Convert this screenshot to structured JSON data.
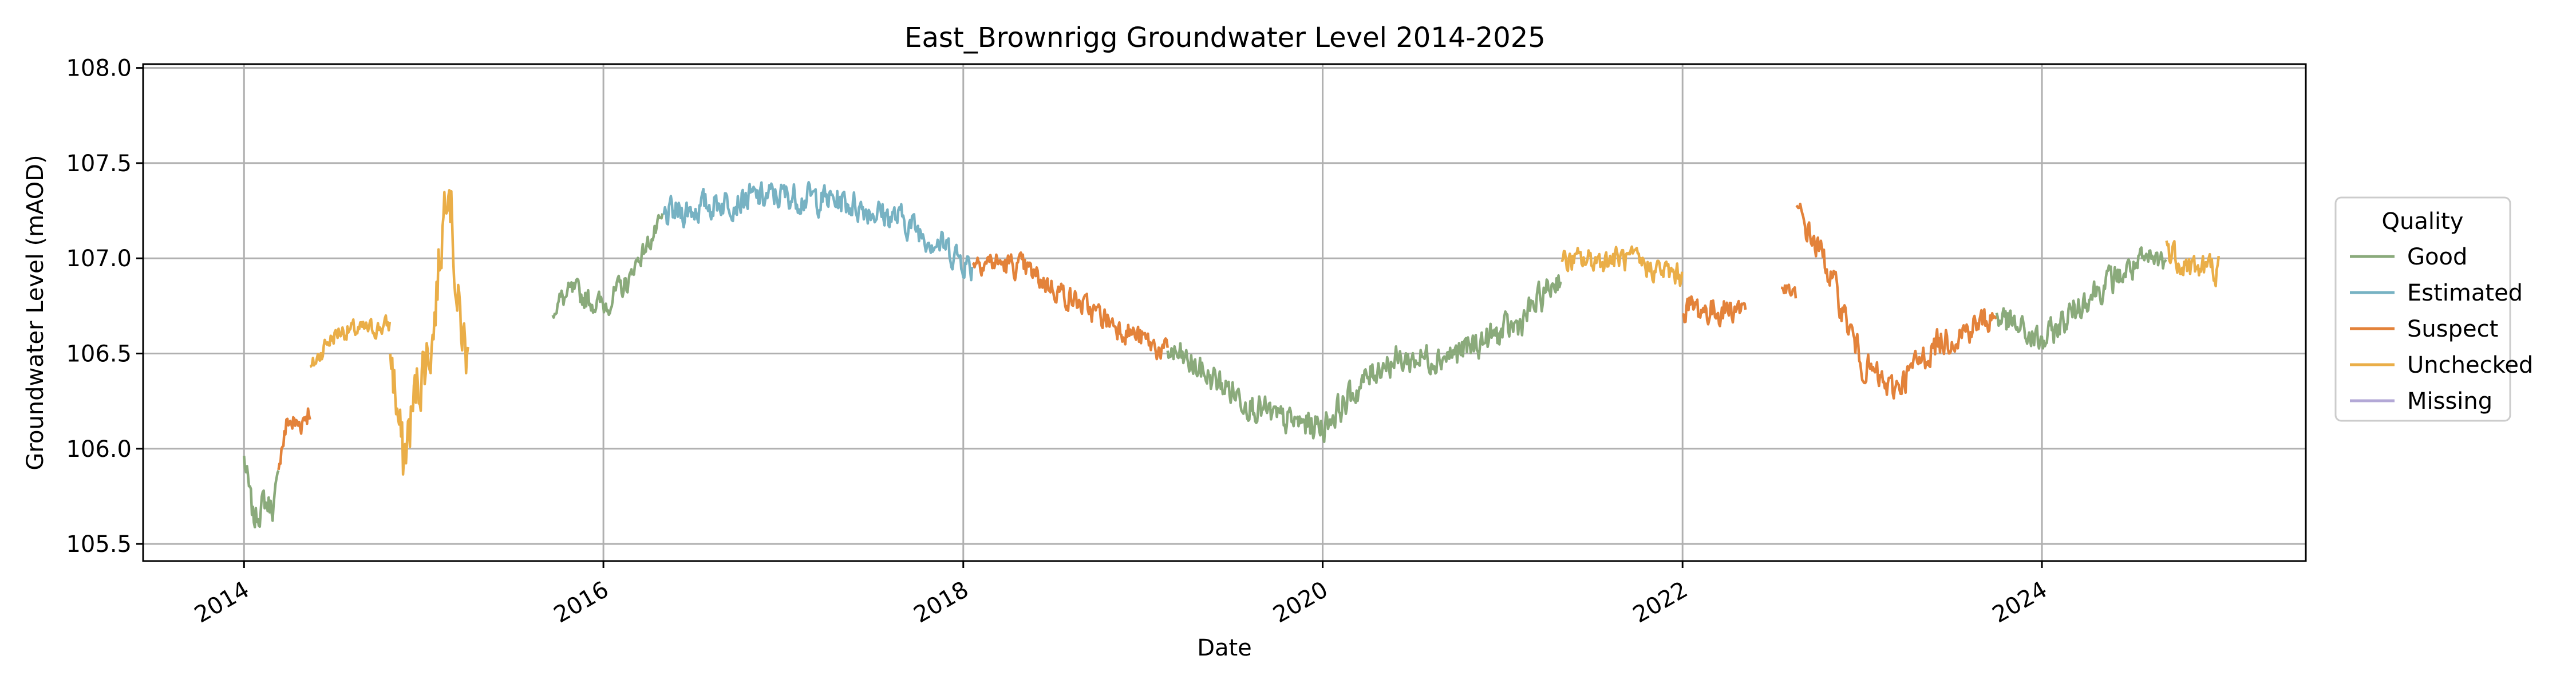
{
  "chart_data": {
    "type": "line",
    "title": "East_Brownrigg Groundwater Level 2014-2025",
    "xlabel": "Date",
    "ylabel": "Groundwater Level (mAOD)",
    "x_ticks": [
      "2014",
      "2016",
      "2018",
      "2020",
      "2022",
      "2024"
    ],
    "y_ticks": [
      "105.5",
      "106.0",
      "106.5",
      "107.0",
      "107.5",
      "108.0"
    ],
    "xlim": [
      "2013-06-10",
      "2025-06-20"
    ],
    "ylim": [
      105.41,
      108.02
    ],
    "grid": true,
    "legend": {
      "title": "Quality",
      "placement": "right-outside",
      "entries": [
        "Good",
        "Estimated",
        "Suspect",
        "Unchecked",
        "Missing"
      ]
    },
    "colors": {
      "Good": "#8aaa7b",
      "Estimated": "#77b2c3",
      "Suspect": "#e3823a",
      "Unchecked": "#eaae48",
      "Missing": "#b3a8d6"
    },
    "segments": [
      {
        "quality": "Good",
        "start": "2014-01-01",
        "end": "2014-03-12",
        "amp": 0.12,
        "points": [
          [
            "2014-01-01",
            105.95
          ],
          [
            "2014-01-20",
            105.62
          ],
          [
            "2014-02-10",
            105.72
          ],
          [
            "2014-03-01",
            105.7
          ],
          [
            "2014-03-12",
            105.82
          ]
        ]
      },
      {
        "quality": "Suspect",
        "start": "2014-03-12",
        "end": "2014-05-15",
        "amp": 0.12,
        "points": [
          [
            "2014-03-12",
            105.95
          ],
          [
            "2014-04-01",
            106.15
          ],
          [
            "2014-04-20",
            106.12
          ],
          [
            "2014-05-15",
            106.22
          ]
        ]
      },
      {
        "quality": "Unchecked",
        "start": "2014-05-15",
        "end": "2014-10-25",
        "amp": 0.08,
        "points": [
          [
            "2014-05-15",
            106.4
          ],
          [
            "2014-06-15",
            106.55
          ],
          [
            "2014-07-15",
            106.62
          ],
          [
            "2014-09-01",
            106.62
          ],
          [
            "2014-10-25",
            106.65
          ]
        ]
      },
      {
        "quality": "Unchecked",
        "start": "2014-10-25",
        "end": "2015-04-01",
        "amp": 0.28,
        "points": [
          [
            "2014-10-25",
            106.55
          ],
          [
            "2014-11-20",
            105.92
          ],
          [
            "2014-12-20",
            106.35
          ],
          [
            "2015-01-20",
            106.6
          ],
          [
            "2015-02-20",
            107.55
          ],
          [
            "2015-03-10",
            106.75
          ],
          [
            "2015-04-01",
            106.45
          ]
        ]
      },
      {
        "quality": "Good",
        "start": "2015-09-20",
        "end": "2016-03-01",
        "amp": 0.1,
        "points": [
          [
            "2015-09-20",
            106.75
          ],
          [
            "2015-11-01",
            106.82
          ],
          [
            "2016-01-01",
            106.75
          ],
          [
            "2016-03-01",
            106.9
          ]
        ]
      },
      {
        "quality": "Good",
        "start": "2016-03-01",
        "end": "2016-05-01",
        "amp": 0.08,
        "points": [
          [
            "2016-03-01",
            106.95
          ],
          [
            "2016-05-01",
            107.2
          ]
        ]
      },
      {
        "quality": "Estimated",
        "start": "2016-05-01",
        "end": "2018-01-20",
        "amp": 0.12,
        "points": [
          [
            "2016-05-01",
            107.22
          ],
          [
            "2016-09-01",
            107.3
          ],
          [
            "2017-01-01",
            107.33
          ],
          [
            "2017-05-01",
            107.3
          ],
          [
            "2017-09-01",
            107.2
          ],
          [
            "2017-12-01",
            107.05
          ],
          [
            "2018-01-20",
            106.95
          ]
        ]
      },
      {
        "quality": "Suspect",
        "start": "2018-01-20",
        "end": "2019-02-20",
        "amp": 0.1,
        "points": [
          [
            "2018-01-20",
            107.0
          ],
          [
            "2018-05-01",
            106.95
          ],
          [
            "2018-09-01",
            106.75
          ],
          [
            "2019-02-20",
            106.5
          ]
        ]
      },
      {
        "quality": "Good",
        "start": "2019-02-20",
        "end": "2021-05-01",
        "amp": 0.12,
        "points": [
          [
            "2019-02-20",
            106.52
          ],
          [
            "2019-06-01",
            106.35
          ],
          [
            "2019-10-01",
            106.15
          ],
          [
            "2020-01-01",
            106.12
          ],
          [
            "2020-05-01",
            106.45
          ],
          [
            "2020-10-01",
            106.5
          ],
          [
            "2021-02-01",
            106.65
          ],
          [
            "2021-05-01",
            106.92
          ]
        ]
      },
      {
        "quality": "Unchecked",
        "start": "2021-05-01",
        "end": "2022-01-01",
        "amp": 0.1,
        "points": [
          [
            "2021-05-01",
            106.98
          ],
          [
            "2021-09-01",
            107.0
          ],
          [
            "2022-01-01",
            106.9
          ]
        ]
      },
      {
        "quality": "Suspect",
        "start": "2022-01-01",
        "end": "2022-05-10",
        "amp": 0.12,
        "points": [
          [
            "2022-01-01",
            106.75
          ],
          [
            "2022-03-01",
            106.72
          ],
          [
            "2022-05-10",
            106.75
          ]
        ]
      },
      {
        "quality": "Suspect",
        "start": "2022-07-20",
        "end": "2022-08-20",
        "amp": 0.06,
        "points": [
          [
            "2022-07-20",
            106.85
          ],
          [
            "2022-08-20",
            106.8
          ]
        ]
      },
      {
        "quality": "Suspect",
        "start": "2022-08-20",
        "end": "2023-10-01",
        "amp": 0.12,
        "points": [
          [
            "2022-08-20",
            107.25
          ],
          [
            "2022-10-15",
            107.0
          ],
          [
            "2023-01-01",
            106.45
          ],
          [
            "2023-03-01",
            106.3
          ],
          [
            "2023-06-01",
            106.55
          ],
          [
            "2023-10-01",
            106.7
          ]
        ]
      },
      {
        "quality": "Good",
        "start": "2023-10-01",
        "end": "2024-09-10",
        "amp": 0.12,
        "points": [
          [
            "2023-10-01",
            106.7
          ],
          [
            "2024-01-01",
            106.55
          ],
          [
            "2024-04-01",
            106.8
          ],
          [
            "2024-07-01",
            106.95
          ],
          [
            "2024-09-10",
            107.0
          ]
        ]
      },
      {
        "quality": "Unchecked",
        "start": "2024-09-10",
        "end": "2024-12-25",
        "amp": 0.12,
        "points": [
          [
            "2024-09-10",
            107.05
          ],
          [
            "2024-11-01",
            106.95
          ],
          [
            "2024-12-25",
            106.95
          ]
        ]
      }
    ]
  }
}
